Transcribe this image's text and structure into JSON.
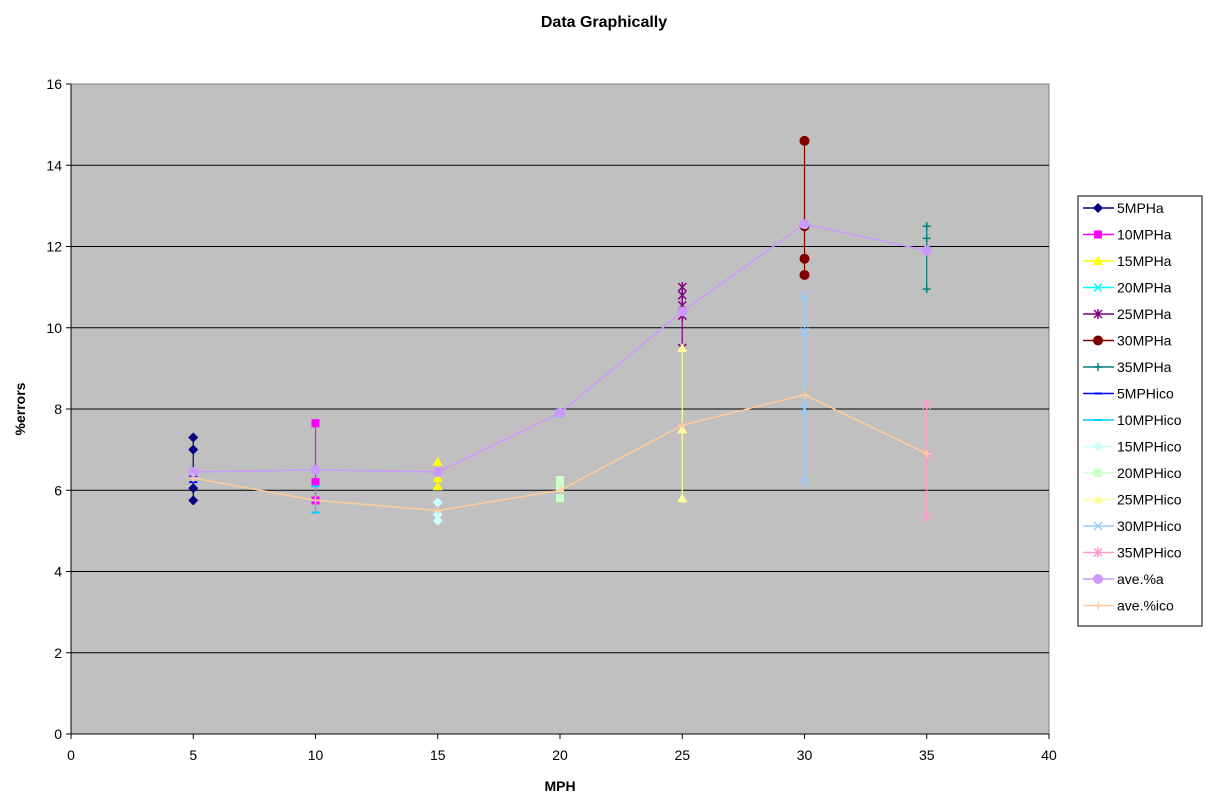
{
  "chart_data": {
    "type": "scatter",
    "title": "Data Graphically",
    "xlabel": "MPH",
    "ylabel": "%errors",
    "xlim": [
      0,
      40
    ],
    "ylim": [
      0,
      16
    ],
    "xticks": [
      0,
      5,
      10,
      15,
      20,
      25,
      30,
      35,
      40
    ],
    "yticks": [
      0,
      2,
      4,
      6,
      8,
      10,
      12,
      14,
      16
    ],
    "grid": "horizontal",
    "legend_position": "right",
    "plot_background": "#c0c0c0",
    "series": [
      {
        "name": "5MPHa",
        "color": "#000080",
        "marker": "diamond",
        "x": [
          5,
          5,
          5,
          5
        ],
        "y": [
          7.3,
          7.0,
          6.05,
          5.75
        ]
      },
      {
        "name": "10MPHa",
        "color": "#ff00ff",
        "marker": "square",
        "x": [
          10,
          10,
          10
        ],
        "y": [
          7.65,
          6.2,
          5.75
        ]
      },
      {
        "name": "15MPHa",
        "color": "#ffff00",
        "marker": "triangle",
        "x": [
          15,
          15,
          15
        ],
        "y": [
          6.7,
          6.3,
          6.1
        ]
      },
      {
        "name": "20MPHa",
        "color": "#00ffff",
        "marker": "x",
        "x": [
          20
        ],
        "y": [
          7.9
        ]
      },
      {
        "name": "25MPHa",
        "color": "#800080",
        "marker": "star",
        "x": [
          25,
          25,
          25,
          25,
          25
        ],
        "y": [
          11.0,
          10.8,
          10.55,
          10.3,
          9.5
        ]
      },
      {
        "name": "30MPHa",
        "color": "#800000",
        "marker": "circle",
        "x": [
          30,
          30,
          30,
          30
        ],
        "y": [
          14.6,
          12.5,
          11.7,
          11.3
        ]
      },
      {
        "name": "35MPHa",
        "color": "#008080",
        "marker": "plus",
        "x": [
          35,
          35,
          35,
          35
        ],
        "y": [
          12.5,
          12.2,
          11.9,
          10.95
        ]
      },
      {
        "name": "5MPHico",
        "color": "#0000ff",
        "marker": "dash",
        "x": [
          5,
          5,
          5
        ],
        "y": [
          6.5,
          6.35,
          6.2
        ]
      },
      {
        "name": "10MPHico",
        "color": "#00ccff",
        "marker": "dash",
        "x": [
          10,
          10,
          10
        ],
        "y": [
          6.1,
          5.75,
          5.45
        ]
      },
      {
        "name": "15MPHico",
        "color": "#ccffff",
        "marker": "diamond",
        "x": [
          15,
          15,
          15
        ],
        "y": [
          5.7,
          5.4,
          5.25
        ]
      },
      {
        "name": "20MPHico",
        "color": "#ccffcc",
        "marker": "square",
        "x": [
          20,
          20,
          20
        ],
        "y": [
          6.25,
          6.05,
          5.8
        ]
      },
      {
        "name": "25MPHico",
        "color": "#ffff99",
        "marker": "triangle",
        "x": [
          25,
          25,
          25
        ],
        "y": [
          9.5,
          7.5,
          5.8
        ]
      },
      {
        "name": "30MPHico",
        "color": "#99ccff",
        "marker": "x",
        "x": [
          30,
          30,
          30,
          30
        ],
        "y": [
          10.8,
          9.9,
          8.0,
          6.2
        ]
      },
      {
        "name": "35MPHico",
        "color": "#ff99cc",
        "marker": "star",
        "x": [
          35,
          35,
          35
        ],
        "y": [
          8.1,
          6.9,
          5.35
        ]
      },
      {
        "name": "ave.%a",
        "color": "#cc99ff",
        "marker": "circle",
        "line": true,
        "x": [
          5,
          10,
          15,
          20,
          25,
          30,
          35
        ],
        "y": [
          6.45,
          6.5,
          6.45,
          7.9,
          10.4,
          12.55,
          11.9
        ]
      },
      {
        "name": "ave.%ico",
        "color": "#ffcc99",
        "marker": "plus",
        "line": true,
        "x": [
          5,
          10,
          15,
          20,
          25,
          30,
          35
        ],
        "y": [
          6.3,
          5.75,
          5.5,
          6.0,
          7.6,
          8.35,
          6.9
        ]
      }
    ]
  }
}
